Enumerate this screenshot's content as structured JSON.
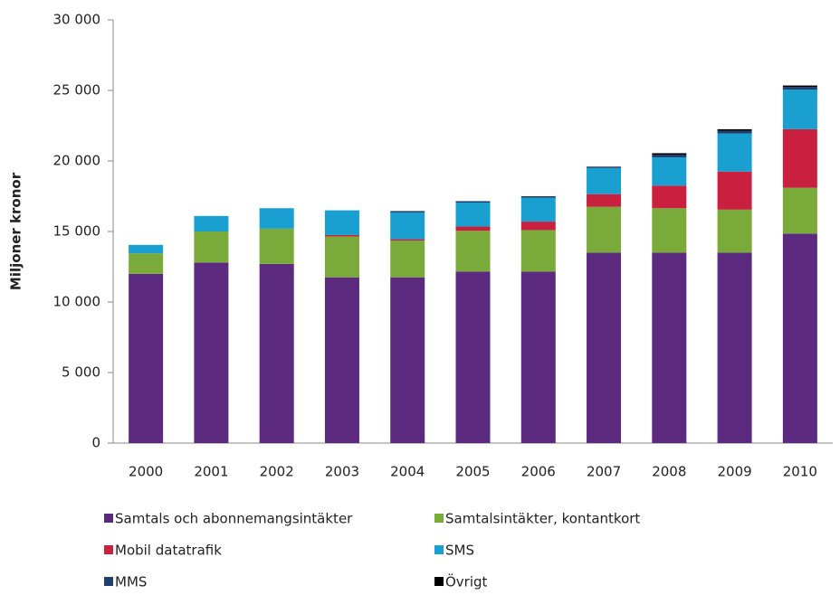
{
  "chart_data": {
    "type": "stacked_bar",
    "y_label": "Miljoner kronor",
    "categories": [
      "2000",
      "2001",
      "2002",
      "2003",
      "2004",
      "2005",
      "2006",
      "2007",
      "2008",
      "2009",
      "2010"
    ],
    "series": [
      {
        "name": "Samtals och abonnemangsintäkter",
        "color": "#5b2a7e",
        "values": [
          12000,
          12800,
          12700,
          11750,
          11750,
          12150,
          12150,
          13500,
          13500,
          13500,
          14850
        ]
      },
      {
        "name": "Samtalsintäkter, kontantkort",
        "color": "#7aaa3a",
        "values": [
          1450,
          2200,
          2500,
          2900,
          2600,
          2900,
          2950,
          3250,
          3150,
          3050,
          3250
        ]
      },
      {
        "name": "Mobil datatrafik",
        "color": "#c8203e",
        "values": [
          0,
          0,
          0,
          100,
          100,
          300,
          600,
          900,
          1600,
          2700,
          4150
        ]
      },
      {
        "name": "SMS",
        "color": "#1aa0d0",
        "values": [
          600,
          1100,
          1450,
          1750,
          1900,
          1700,
          1700,
          1850,
          2000,
          2700,
          2800
        ]
      },
      {
        "name": "MMS",
        "color": "#1f3f6e",
        "values": [
          0,
          0,
          0,
          0,
          100,
          100,
          100,
          100,
          200,
          200,
          200
        ]
      },
      {
        "name": "Övrigt",
        "color": "#000000",
        "values": [
          0,
          0,
          0,
          0,
          0,
          0,
          0,
          0,
          100,
          100,
          100
        ]
      }
    ],
    "ylim": [
      0,
      30000
    ],
    "yticks": [
      0,
      {
        "value": 5000,
        "label": "5 000"
      },
      {
        "value": 10000,
        "label": "10 000"
      },
      {
        "value": 15000,
        "label": "15 000"
      },
      {
        "value": 20000,
        "label": "20 000"
      },
      {
        "value": 25000,
        "label": "25 000"
      },
      {
        "value": 30000,
        "label": "30 000"
      }
    ]
  }
}
